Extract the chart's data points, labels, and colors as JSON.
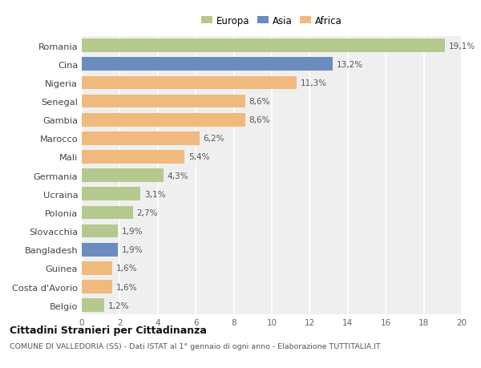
{
  "categories": [
    "Romania",
    "Cina",
    "Nigeria",
    "Senegal",
    "Gambia",
    "Marocco",
    "Mali",
    "Germania",
    "Ucraina",
    "Polonia",
    "Slovacchia",
    "Bangladesh",
    "Guinea",
    "Costa d'Avorio",
    "Belgio"
  ],
  "values": [
    19.1,
    13.2,
    11.3,
    8.6,
    8.6,
    6.2,
    5.4,
    4.3,
    3.1,
    2.7,
    1.9,
    1.9,
    1.6,
    1.6,
    1.2
  ],
  "labels": [
    "19,1%",
    "13,2%",
    "11,3%",
    "8,6%",
    "8,6%",
    "6,2%",
    "5,4%",
    "4,3%",
    "3,1%",
    "2,7%",
    "1,9%",
    "1,9%",
    "1,6%",
    "1,6%",
    "1,2%"
  ],
  "continent": [
    "Europa",
    "Asia",
    "Africa",
    "Africa",
    "Africa",
    "Africa",
    "Africa",
    "Europa",
    "Europa",
    "Europa",
    "Europa",
    "Asia",
    "Africa",
    "Africa",
    "Europa"
  ],
  "colors": {
    "Europa": "#b5c98e",
    "Asia": "#6b8cbf",
    "Africa": "#f0b97d"
  },
  "background_color": "#ffffff",
  "plot_bg_color": "#efefef",
  "title": "Cittadini Stranieri per Cittadinanza",
  "subtitle": "COMUNE DI VALLEDORIA (SS) - Dati ISTAT al 1° gennaio di ogni anno - Elaborazione TUTTITALIA.IT",
  "xlim": [
    0,
    20
  ],
  "xticks": [
    0,
    2,
    4,
    6,
    8,
    10,
    12,
    14,
    16,
    18,
    20
  ],
  "grid_color": "#ffffff",
  "bar_height": 0.72
}
